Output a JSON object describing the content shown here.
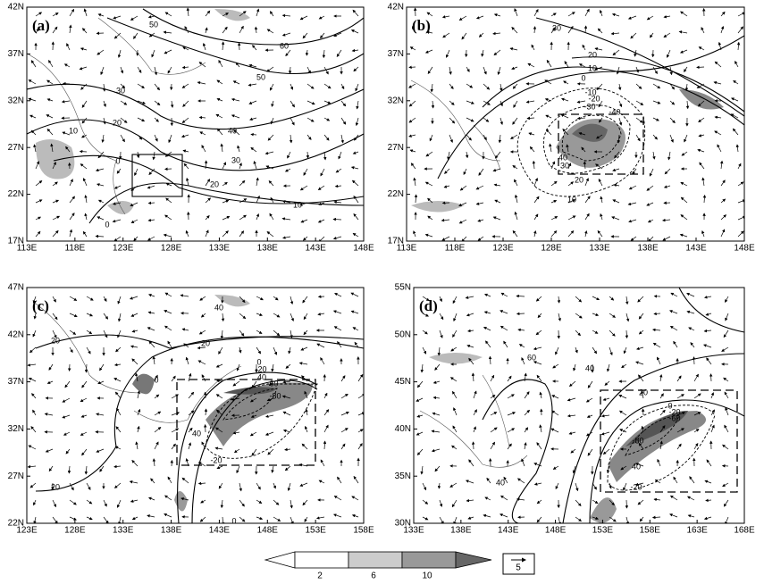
{
  "panels": [
    {
      "label": "(a)",
      "lon_ticks": [
        "113E",
        "118E",
        "123E",
        "128E",
        "133E",
        "138E",
        "143E",
        "148E"
      ],
      "lat_ticks": [
        "17N",
        "22N",
        "27N",
        "32N",
        "37N",
        "42N"
      ],
      "contour_labels": [
        "50",
        "60",
        "50",
        "30",
        "20",
        "10",
        "40",
        "30",
        "20",
        "10",
        "0",
        "0"
      ]
    },
    {
      "label": "(b)",
      "lon_ticks": [
        "113E",
        "118E",
        "123E",
        "128E",
        "133E",
        "138E",
        "143E",
        "148E"
      ],
      "lat_ticks": [
        "17N",
        "22N",
        "27N",
        "32N",
        "37N",
        "42N"
      ],
      "contour_labels": [
        "30",
        "20",
        "10",
        "0",
        "-10",
        "-20",
        "-30",
        "-40",
        "40",
        "30",
        "20",
        "10"
      ]
    },
    {
      "label": "(c)",
      "lon_ticks": [
        "123E",
        "128E",
        "133E",
        "138E",
        "143E",
        "148E",
        "153E",
        "158E"
      ],
      "lat_ticks": [
        "22N",
        "27N",
        "32N",
        "37N",
        "42N",
        "47N"
      ],
      "contour_labels": [
        "40",
        "20",
        "20",
        "0",
        "0",
        "-20",
        "40",
        "-60",
        "-80",
        "40",
        "-20",
        "20",
        "0"
      ]
    },
    {
      "label": "(d)",
      "lon_ticks": [
        "133E",
        "138E",
        "143E",
        "148E",
        "153E",
        "158E",
        "163E",
        "168E"
      ],
      "lat_ticks": [
        "30N",
        "35N",
        "40N",
        "45N",
        "50N",
        "55N"
      ],
      "contour_labels": [
        "60",
        "40",
        "20",
        "0",
        "-20",
        "-60",
        "-80",
        "40",
        "-20",
        "40"
      ]
    }
  ],
  "colorbar": {
    "labels": [
      "2",
      "6",
      "10"
    ]
  },
  "vector_key": "5"
}
